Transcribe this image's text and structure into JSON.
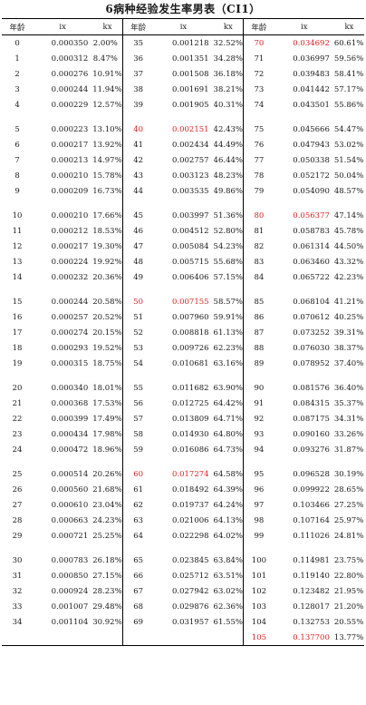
{
  "title": "6病种经验发生率男表（CI1）",
  "columns": [
    "年龄",
    "ix",
    "kx",
    "年龄",
    "ix",
    "kx",
    "年龄",
    "ix",
    "kx"
  ],
  "highlight_color": "#e02020",
  "groups": [
    [
      [
        [
          "0",
          "0.000350",
          "2.00%"
        ],
        [
          "35",
          "0.001218",
          "32.52%"
        ],
        [
          "70",
          "0.034692",
          "60.61%",
          true
        ]
      ],
      [
        [
          "1",
          "0.000312",
          "8.47%"
        ],
        [
          "36",
          "0.001351",
          "34.28%"
        ],
        [
          "71",
          "0.036997",
          "59.56%"
        ]
      ],
      [
        [
          "2",
          "0.000276",
          "10.91%"
        ],
        [
          "37",
          "0.001508",
          "36.18%"
        ],
        [
          "72",
          "0.039483",
          "58.41%"
        ]
      ],
      [
        [
          "3",
          "0.000244",
          "11.94%"
        ],
        [
          "38",
          "0.001691",
          "38.21%"
        ],
        [
          "73",
          "0.041442",
          "57.17%"
        ]
      ],
      [
        [
          "4",
          "0.000229",
          "12.57%"
        ],
        [
          "39",
          "0.001905",
          "40.31%"
        ],
        [
          "74",
          "0.043501",
          "55.86%"
        ]
      ]
    ],
    [
      [
        [
          "5",
          "0.000223",
          "13.10%"
        ],
        [
          "40",
          "0.002151",
          "42.43%",
          true
        ],
        [
          "75",
          "0.045666",
          "54.47%"
        ]
      ],
      [
        [
          "6",
          "0.000217",
          "13.92%"
        ],
        [
          "41",
          "0.002434",
          "44.49%"
        ],
        [
          "76",
          "0.047943",
          "53.02%"
        ]
      ],
      [
        [
          "7",
          "0.000213",
          "14.97%"
        ],
        [
          "42",
          "0.002757",
          "46.44%"
        ],
        [
          "77",
          "0.050338",
          "51.54%"
        ]
      ],
      [
        [
          "8",
          "0.000210",
          "15.78%"
        ],
        [
          "43",
          "0.003123",
          "48.23%"
        ],
        [
          "78",
          "0.052172",
          "50.04%"
        ]
      ],
      [
        [
          "9",
          "0.000209",
          "16.73%"
        ],
        [
          "44",
          "0.003535",
          "49.86%"
        ],
        [
          "79",
          "0.054090",
          "48.57%"
        ]
      ]
    ],
    [
      [
        [
          "10",
          "0.000210",
          "17.66%"
        ],
        [
          "45",
          "0.003997",
          "51.36%"
        ],
        [
          "80",
          "0.056377",
          "47.14%",
          true
        ]
      ],
      [
        [
          "11",
          "0.000212",
          "18.53%"
        ],
        [
          "46",
          "0.004512",
          "52.80%"
        ],
        [
          "81",
          "0.058783",
          "45.78%"
        ]
      ],
      [
        [
          "12",
          "0.000217",
          "19.30%"
        ],
        [
          "47",
          "0.005084",
          "54.23%"
        ],
        [
          "82",
          "0.061314",
          "44.50%"
        ]
      ],
      [
        [
          "13",
          "0.000224",
          "19.92%"
        ],
        [
          "48",
          "0.005715",
          "55.68%"
        ],
        [
          "83",
          "0.063460",
          "43.32%"
        ]
      ],
      [
        [
          "14",
          "0.000232",
          "20.36%"
        ],
        [
          "49",
          "0.006406",
          "57.15%"
        ],
        [
          "84",
          "0.065722",
          "42.23%"
        ]
      ]
    ],
    [
      [
        [
          "15",
          "0.000244",
          "20.58%"
        ],
        [
          "50",
          "0.007155",
          "58.57%",
          true
        ],
        [
          "85",
          "0.068104",
          "41.21%"
        ]
      ],
      [
        [
          "16",
          "0.000257",
          "20.52%"
        ],
        [
          "51",
          "0.007960",
          "59.91%"
        ],
        [
          "86",
          "0.070612",
          "40.25%"
        ]
      ],
      [
        [
          "17",
          "0.000274",
          "20.15%"
        ],
        [
          "52",
          "0.008818",
          "61.13%"
        ],
        [
          "87",
          "0.073252",
          "39.31%"
        ]
      ],
      [
        [
          "18",
          "0.000293",
          "19.52%"
        ],
        [
          "53",
          "0.009726",
          "62.23%"
        ],
        [
          "88",
          "0.076030",
          "38.37%"
        ]
      ],
      [
        [
          "19",
          "0.000315",
          "18.75%"
        ],
        [
          "54",
          "0.010681",
          "63.16%"
        ],
        [
          "89",
          "0.078952",
          "37.40%"
        ]
      ]
    ],
    [
      [
        [
          "20",
          "0.000340",
          "18.01%"
        ],
        [
          "55",
          "0.011682",
          "63.90%"
        ],
        [
          "90",
          "0.081576",
          "36.40%"
        ]
      ],
      [
        [
          "21",
          "0.000368",
          "17.53%"
        ],
        [
          "56",
          "0.012725",
          "64.42%"
        ],
        [
          "91",
          "0.084315",
          "35.37%"
        ]
      ],
      [
        [
          "22",
          "0.000399",
          "17.49%"
        ],
        [
          "57",
          "0.013809",
          "64.71%"
        ],
        [
          "92",
          "0.087175",
          "34.31%"
        ]
      ],
      [
        [
          "23",
          "0.000434",
          "17.98%"
        ],
        [
          "58",
          "0.014930",
          "64.80%"
        ],
        [
          "93",
          "0.090160",
          "33.26%"
        ]
      ],
      [
        [
          "24",
          "0.000472",
          "18.96%"
        ],
        [
          "59",
          "0.016086",
          "64.73%"
        ],
        [
          "94",
          "0.093276",
          "31.87%"
        ]
      ]
    ],
    [
      [
        [
          "25",
          "0.000514",
          "20.26%"
        ],
        [
          "60",
          "0.017274",
          "64.58%",
          true
        ],
        [
          "95",
          "0.096528",
          "30.19%"
        ]
      ],
      [
        [
          "26",
          "0.000560",
          "21.68%"
        ],
        [
          "61",
          "0.018492",
          "64.39%"
        ],
        [
          "96",
          "0.099922",
          "28.65%"
        ]
      ],
      [
        [
          "27",
          "0.000610",
          "23.04%"
        ],
        [
          "62",
          "0.019737",
          "64.24%"
        ],
        [
          "97",
          "0.103466",
          "27.25%"
        ]
      ],
      [
        [
          "28",
          "0.000663",
          "24.23%"
        ],
        [
          "63",
          "0.021006",
          "64.13%"
        ],
        [
          "98",
          "0.107164",
          "25.97%"
        ]
      ],
      [
        [
          "29",
          "0.000721",
          "25.25%"
        ],
        [
          "64",
          "0.022298",
          "64.02%"
        ],
        [
          "99",
          "0.111026",
          "24.81%"
        ]
      ]
    ],
    [
      [
        [
          "30",
          "0.000783",
          "26.18%"
        ],
        [
          "65",
          "0.023845",
          "63.84%"
        ],
        [
          "100",
          "0.114981",
          "23.75%"
        ]
      ],
      [
        [
          "31",
          "0.000850",
          "27.15%"
        ],
        [
          "66",
          "0.025712",
          "63.51%"
        ],
        [
          "101",
          "0.119140",
          "22.80%"
        ]
      ],
      [
        [
          "32",
          "0.000924",
          "28.23%"
        ],
        [
          "67",
          "0.027942",
          "63.02%"
        ],
        [
          "102",
          "0.123482",
          "21.95%"
        ]
      ],
      [
        [
          "33",
          "0.001007",
          "29.48%"
        ],
        [
          "68",
          "0.029876",
          "62.36%"
        ],
        [
          "103",
          "0.128017",
          "21.20%"
        ]
      ],
      [
        [
          "34",
          "0.001104",
          "30.92%"
        ],
        [
          "69",
          "0.031957",
          "61.55%"
        ],
        [
          "104",
          "0.132753",
          "20.55%"
        ]
      ],
      [
        null,
        null,
        [
          "105",
          "0.137700",
          "13.77%",
          true
        ]
      ]
    ]
  ]
}
